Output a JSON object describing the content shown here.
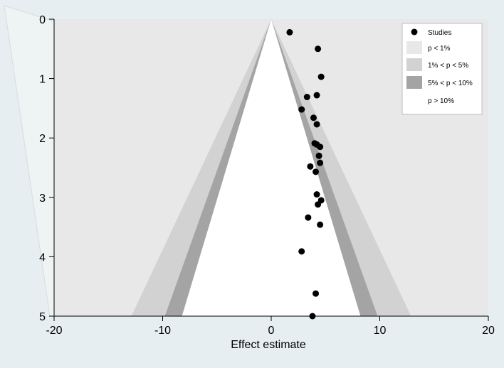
{
  "chart_data": {
    "type": "scatter",
    "title": "",
    "xlabel": "Effect estimate",
    "ylabel": "",
    "xlim": [
      -20,
      20
    ],
    "ylim": [
      0,
      5
    ],
    "y_reversed": true,
    "x_ticks": [
      "-20",
      "-10",
      "0",
      "10",
      "20"
    ],
    "y_ticks": [
      "0",
      "1",
      "2",
      "3",
      "4",
      "5"
    ],
    "contour_center": 0,
    "contours": [
      {
        "label": "p < 1%",
        "z": 2.576,
        "color": "#e8e8e8"
      },
      {
        "label": "1% < p < 5%",
        "z": 1.96,
        "color": "#d2d2d2"
      },
      {
        "label": "5% < p < 10%",
        "z": 1.645,
        "color": "#a4a4a4"
      },
      {
        "label": "p > 10%",
        "color": "#ffffff"
      }
    ],
    "series": [
      {
        "name": "Studies",
        "points": [
          [
            1.7,
            0.22
          ],
          [
            4.3,
            0.5
          ],
          [
            4.6,
            0.97
          ],
          [
            3.3,
            1.31
          ],
          [
            4.2,
            1.28
          ],
          [
            2.8,
            1.52
          ],
          [
            3.9,
            1.66
          ],
          [
            4.2,
            1.77
          ],
          [
            4.0,
            2.09
          ],
          [
            4.2,
            2.11
          ],
          [
            4.5,
            2.15
          ],
          [
            4.4,
            2.3
          ],
          [
            4.5,
            2.42
          ],
          [
            3.6,
            2.48
          ],
          [
            4.1,
            2.57
          ],
          [
            4.2,
            2.95
          ],
          [
            4.6,
            3.05
          ],
          [
            4.3,
            3.12
          ],
          [
            3.4,
            3.34
          ],
          [
            4.5,
            3.46
          ],
          [
            2.8,
            3.91
          ],
          [
            4.1,
            4.62
          ],
          [
            3.8,
            5.0
          ]
        ]
      }
    ],
    "legend": {
      "placement": "top-right",
      "entries": [
        "Studies",
        "p < 1%",
        "1% < p < 5%",
        "5% < p < 10%",
        "p > 10%"
      ]
    },
    "grid": false
  }
}
